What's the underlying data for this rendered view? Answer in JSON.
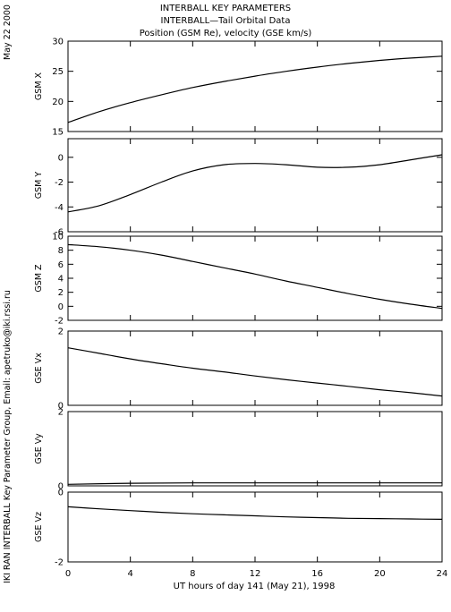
{
  "header": {
    "line1": "INTERBALL KEY PARAMETERS",
    "line2": "INTERBALL—Tail Orbital Data",
    "line3": "Position (GSM Re), velocity (GSE km/s)"
  },
  "side_date": "May 22 2000",
  "side_credit": "IKI RAN INTERBALL Key Parameter Group, Email: apetruko@iki.rssi.ru",
  "chart_data": {
    "type": "line",
    "xlabel": "UT hours of day 141 (May 21), 1998",
    "xlim": [
      0,
      24
    ],
    "xticks": [
      0,
      4,
      8,
      12,
      16,
      20,
      24
    ],
    "panels": [
      {
        "ylabel": "GSM X",
        "ylim": [
          15,
          30
        ],
        "yticks": [
          15,
          20,
          25,
          30
        ],
        "x": [
          0,
          2,
          4,
          6,
          8,
          10,
          12,
          14,
          16,
          18,
          20,
          22,
          24
        ],
        "y": [
          16.5,
          18.3,
          19.8,
          21.1,
          22.3,
          23.3,
          24.2,
          25.0,
          25.7,
          26.3,
          26.8,
          27.2,
          27.5
        ]
      },
      {
        "ylabel": "GSM Y",
        "ylim": [
          -6,
          1.5
        ],
        "yticks": [
          -6,
          -4,
          -2,
          0
        ],
        "x": [
          0,
          2,
          4,
          6,
          8,
          10,
          12,
          14,
          16,
          18,
          20,
          22,
          24
        ],
        "y": [
          -4.4,
          -3.9,
          -3.0,
          -2.0,
          -1.1,
          -0.6,
          -0.5,
          -0.6,
          -0.8,
          -0.8,
          -0.6,
          -0.2,
          0.2
        ]
      },
      {
        "ylabel": "GSM Z",
        "ylim": [
          -2,
          10
        ],
        "yticks": [
          -2,
          0,
          2,
          4,
          6,
          8,
          10
        ],
        "x": [
          0,
          2,
          4,
          6,
          8,
          10,
          12,
          14,
          16,
          18,
          20,
          22,
          24
        ],
        "y": [
          8.8,
          8.5,
          8.0,
          7.3,
          6.4,
          5.5,
          4.6,
          3.6,
          2.7,
          1.8,
          1.0,
          0.3,
          -0.3
        ]
      },
      {
        "ylabel": "GSE Vx",
        "ylim": [
          0,
          2
        ],
        "yticks": [
          0,
          2
        ],
        "x": [
          0,
          2,
          4,
          6,
          8,
          10,
          12,
          14,
          16,
          18,
          20,
          22,
          24
        ],
        "y": [
          1.55,
          1.4,
          1.25,
          1.12,
          1.0,
          0.9,
          0.79,
          0.69,
          0.6,
          0.51,
          0.42,
          0.34,
          0.25
        ]
      },
      {
        "ylabel": "GSE Vy",
        "ylim": [
          0,
          2
        ],
        "yticks": [
          0,
          2
        ],
        "x": [
          0,
          4,
          8,
          12,
          16,
          20,
          24
        ],
        "y": [
          0.04,
          0.07,
          0.08,
          0.08,
          0.08,
          0.08,
          0.08
        ]
      },
      {
        "ylabel": "GSE Vz",
        "ylim": [
          -2,
          0
        ],
        "yticks": [
          -2,
          0
        ],
        "x": [
          0,
          2,
          4,
          6,
          8,
          10,
          12,
          14,
          16,
          18,
          20,
          22,
          24
        ],
        "y": [
          -0.42,
          -0.48,
          -0.53,
          -0.58,
          -0.62,
          -0.65,
          -0.68,
          -0.71,
          -0.73,
          -0.75,
          -0.76,
          -0.77,
          -0.78
        ]
      }
    ]
  }
}
